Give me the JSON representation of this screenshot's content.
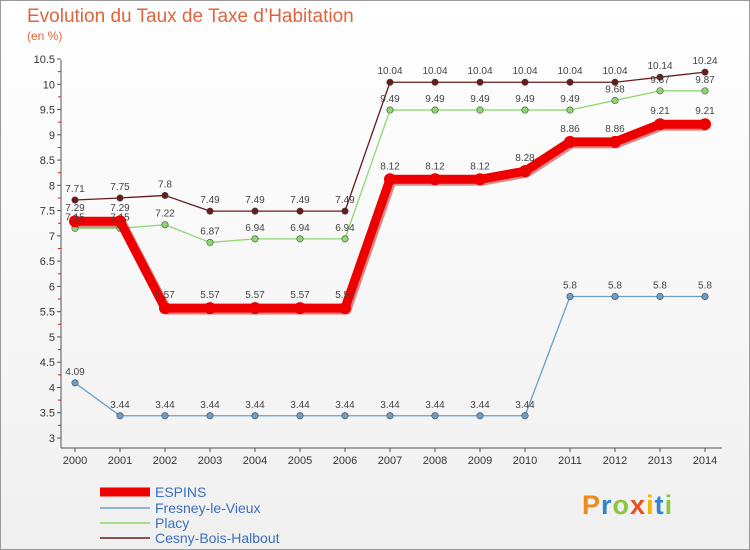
{
  "title": "Evolution du Taux de Taxe d’Habitation",
  "subtitle": "(en %)",
  "logo_text": "Proxiti",
  "chart_data": {
    "type": "line",
    "categories": [
      "2000",
      "2001",
      "2002",
      "2003",
      "2004",
      "2005",
      "2006",
      "2007",
      "2008",
      "2009",
      "2010",
      "2011",
      "2012",
      "2013",
      "2014"
    ],
    "y_ticks": [
      "3",
      "3.5",
      "4",
      "4.5",
      "5",
      "5.5",
      "6",
      "6.5",
      "7",
      "7.5",
      "8",
      "8.5",
      "9",
      "9.5",
      "10",
      "10.5"
    ],
    "ylim": [
      3,
      10.5
    ],
    "grid": false,
    "legend_position": "bottom-left",
    "series": [
      {
        "name": "Cesny-Bois-Halbout",
        "color": "#6b1a1a",
        "values": [
          7.71,
          7.75,
          7.8,
          7.49,
          7.49,
          7.49,
          7.49,
          10.04,
          10.04,
          10.04,
          10.04,
          10.04,
          10.04,
          10.14,
          10.24
        ],
        "labels": [
          "7.71",
          "7.75",
          "7.8",
          "7.49",
          "7.49",
          "7.49",
          "7.49",
          "10.04",
          "10.04",
          "10.04",
          "10.04",
          "10.04",
          "10.04",
          "10.14",
          "10.24"
        ]
      },
      {
        "name": "Placy",
        "color": "#8ed870",
        "values": [
          7.15,
          7.15,
          7.22,
          6.87,
          6.94,
          6.94,
          6.94,
          9.49,
          9.49,
          9.49,
          9.49,
          9.49,
          9.68,
          9.87,
          9.87
        ],
        "labels": [
          "7.15",
          "7.15",
          "7.22",
          "6.87",
          "6.94",
          "6.94",
          "6.94",
          "9.49",
          "9.49",
          "9.49",
          "9.49",
          "9.49",
          "9.68",
          "9.87",
          "9.87"
        ]
      },
      {
        "name": "Fresney-le-Vieux",
        "color": "#6a9fcc",
        "values": [
          4.09,
          3.44,
          3.44,
          3.44,
          3.44,
          3.44,
          3.44,
          3.44,
          3.44,
          3.44,
          3.44,
          5.8,
          5.8,
          5.8,
          5.8
        ],
        "labels": [
          "4.09",
          "3.44",
          "3.44",
          "3.44",
          "3.44",
          "3.44",
          "3.44",
          "3.44",
          "3.44",
          "3.44",
          "3.44",
          "5.8",
          "5.8",
          "5.8",
          "5.8"
        ]
      },
      {
        "name": "ESPINS",
        "color": "#ee0000",
        "values": [
          7.29,
          7.29,
          5.57,
          5.57,
          5.57,
          5.57,
          5.57,
          8.12,
          8.12,
          8.12,
          8.28,
          8.86,
          8.86,
          9.21,
          9.21
        ],
        "labels": [
          "7.29",
          "7.29",
          "5.57",
          "5.57",
          "5.57",
          "5.57",
          "5.57",
          "8.12",
          "8.12",
          "8.12",
          "8.28",
          "8.86",
          "8.86",
          "9.21",
          "9.21"
        ]
      }
    ],
    "legend": [
      "ESPINS",
      "Fresney-le-Vieux",
      "Placy",
      "Cesny-Bois-Halbout"
    ]
  }
}
